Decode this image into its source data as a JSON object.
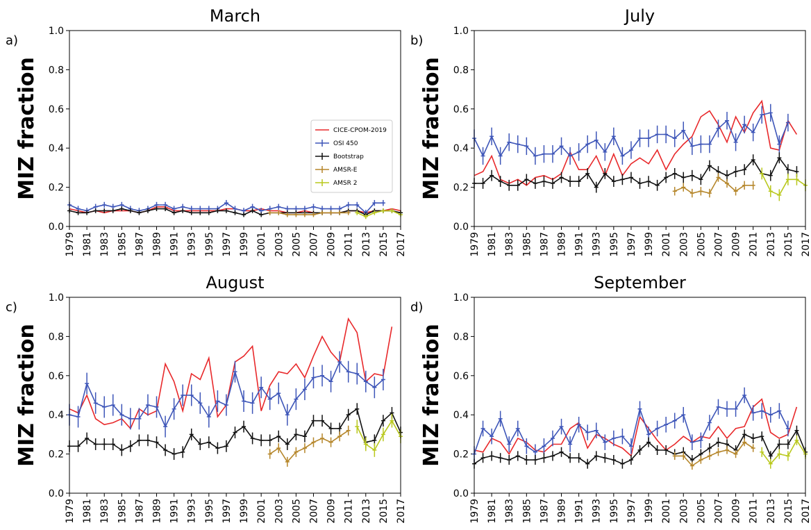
{
  "colors": {
    "CICE-CPOM-2019": "#e8282a",
    "OSI 450": "#3d55b8",
    "Bootstrap": "#111111",
    "AMSR 2": "#b9c81c",
    "AMSR-E": "#b5862a"
  },
  "legend_position": "center-right of panel a",
  "chart_data": [
    {
      "type": "line",
      "panel_label": "a)",
      "title": "March",
      "xlabel": "",
      "ylabel": "MIZ fraction",
      "ylim": [
        0.0,
        1.0
      ],
      "yticks": [
        "0.0",
        "0.2",
        "0.4",
        "0.6",
        "0.8",
        "1.0"
      ],
      "xlim": [
        1979,
        2017
      ],
      "xticks": [
        "1979",
        "1981",
        "1983",
        "1985",
        "1987",
        "1989",
        "1991",
        "1993",
        "1995",
        "1997",
        "1999",
        "2001",
        "2003",
        "2005",
        "2007",
        "2009",
        "2011",
        "2013",
        "2015",
        "2017"
      ],
      "show_legend": true,
      "series": [
        {
          "name": "CICE-CPOM-2019",
          "x_start": 1979,
          "errorbars": false,
          "values": [
            0.09,
            0.08,
            0.07,
            0.08,
            0.07,
            0.08,
            0.08,
            0.08,
            0.07,
            0.08,
            0.1,
            0.1,
            0.08,
            0.08,
            0.08,
            0.08,
            0.08,
            0.08,
            0.09,
            0.09,
            0.08,
            0.08,
            0.09,
            0.08,
            0.08,
            0.07,
            0.07,
            0.08,
            0.07,
            0.07,
            0.07,
            0.07,
            0.08,
            0.08,
            0.07,
            0.08,
            0.08,
            0.09,
            0.08
          ]
        },
        {
          "name": "OSI 450",
          "x_start": 1979,
          "errorbars": true,
          "err": 0.015,
          "values": [
            0.11,
            0.09,
            0.08,
            0.1,
            0.11,
            0.1,
            0.11,
            0.09,
            0.08,
            0.09,
            0.11,
            0.11,
            0.09,
            0.1,
            0.09,
            0.09,
            0.09,
            0.09,
            0.12,
            0.09,
            0.08,
            0.1,
            0.08,
            0.09,
            0.1,
            0.09,
            0.09,
            0.09,
            0.1,
            0.09,
            0.09,
            0.09,
            0.11,
            0.11,
            0.07,
            0.12,
            0.12
          ]
        },
        {
          "name": "Bootstrap",
          "x_start": 1979,
          "errorbars": true,
          "err": 0.012,
          "values": [
            0.08,
            0.07,
            0.07,
            0.08,
            0.08,
            0.08,
            0.09,
            0.08,
            0.07,
            0.08,
            0.09,
            0.09,
            0.07,
            0.08,
            0.07,
            0.07,
            0.07,
            0.08,
            0.08,
            0.07,
            0.06,
            0.08,
            0.06,
            0.07,
            0.07,
            0.07,
            0.07,
            0.07,
            0.07,
            0.07,
            0.07,
            0.07,
            0.08,
            0.08,
            0.06,
            0.08,
            0.08,
            0.08,
            0.07
          ]
        },
        {
          "name": "AMSR-E",
          "x_start": 2002,
          "errorbars": true,
          "err": 0.012,
          "values": [
            0.07,
            0.07,
            0.06,
            0.06,
            0.06,
            0.06,
            0.07,
            0.07,
            0.07,
            0.07
          ]
        },
        {
          "name": "AMSR 2",
          "x_start": 2012,
          "errorbars": true,
          "err": 0.012,
          "values": [
            0.07,
            0.05,
            0.07,
            0.08,
            0.08,
            0.06
          ]
        }
      ]
    },
    {
      "type": "line",
      "panel_label": "b)",
      "title": "July",
      "xlabel": "",
      "ylabel": "MIZ fraction",
      "ylim": [
        0.0,
        1.0
      ],
      "yticks": [
        "0.0",
        "0.2",
        "0.4",
        "0.6",
        "0.8",
        "1.0"
      ],
      "xlim": [
        1979,
        2017
      ],
      "xticks": [
        "1979",
        "1981",
        "1983",
        "1985",
        "1987",
        "1989",
        "1991",
        "1993",
        "1995",
        "1997",
        "1999",
        "2001",
        "2003",
        "2005",
        "2007",
        "2009",
        "2011",
        "2013",
        "2015",
        "2017"
      ],
      "show_legend": false,
      "series": [
        {
          "name": "CICE-CPOM-2019",
          "x_start": 1979,
          "errorbars": false,
          "values": [
            0.26,
            0.28,
            0.36,
            0.24,
            0.22,
            0.24,
            0.21,
            0.25,
            0.26,
            0.24,
            0.27,
            0.38,
            0.29,
            0.29,
            0.36,
            0.26,
            0.37,
            0.26,
            0.32,
            0.35,
            0.32,
            0.39,
            0.29,
            0.37,
            0.42,
            0.46,
            0.56,
            0.59,
            0.52,
            0.43,
            0.56,
            0.48,
            0.58,
            0.64,
            0.4,
            0.39,
            0.54,
            0.47
          ]
        },
        {
          "name": "OSI 450",
          "x_start": 1979,
          "errorbars": true,
          "err": 0.045,
          "values": [
            0.45,
            0.36,
            0.46,
            0.36,
            0.43,
            0.42,
            0.41,
            0.36,
            0.37,
            0.37,
            0.41,
            0.36,
            0.38,
            0.42,
            0.44,
            0.38,
            0.46,
            0.36,
            0.39,
            0.45,
            0.45,
            0.47,
            0.47,
            0.45,
            0.49,
            0.41,
            0.42,
            0.42,
            0.5,
            0.54,
            0.43,
            0.52,
            0.48,
            0.57,
            0.58,
            0.42,
            0.53
          ]
        },
        {
          "name": "Bootstrap",
          "x_start": 1979,
          "errorbars": true,
          "err": 0.028,
          "values": [
            0.22,
            0.22,
            0.26,
            0.23,
            0.21,
            0.21,
            0.24,
            0.22,
            0.23,
            0.22,
            0.25,
            0.23,
            0.23,
            0.27,
            0.2,
            0.27,
            0.23,
            0.24,
            0.25,
            0.22,
            0.23,
            0.21,
            0.25,
            0.27,
            0.25,
            0.26,
            0.24,
            0.31,
            0.28,
            0.26,
            0.28,
            0.29,
            0.34,
            0.27,
            0.26,
            0.35,
            0.29,
            0.28
          ]
        },
        {
          "name": "AMSR-E",
          "x_start": 2002,
          "errorbars": true,
          "err": 0.022,
          "values": [
            0.18,
            0.2,
            0.17,
            0.18,
            0.17,
            0.25,
            0.22,
            0.18,
            0.21,
            0.21
          ]
        },
        {
          "name": "AMSR 2",
          "x_start": 2012,
          "errorbars": true,
          "err": 0.03,
          "values": [
            0.27,
            0.18,
            0.16,
            0.24,
            0.24,
            0.21
          ]
        }
      ]
    },
    {
      "type": "line",
      "panel_label": "c)",
      "title": "August",
      "xlabel": "",
      "ylabel": "MIZ fraction",
      "ylim": [
        0.0,
        1.0
      ],
      "yticks": [
        "0.0",
        "0.2",
        "0.4",
        "0.6",
        "0.8",
        "1.0"
      ],
      "xlim": [
        1979,
        2017
      ],
      "xticks": [
        "1979",
        "1981",
        "1983",
        "1985",
        "1987",
        "1989",
        "1991",
        "1993",
        "1995",
        "1997",
        "1999",
        "2001",
        "2003",
        "2005",
        "2007",
        "2009",
        "2011",
        "2013",
        "2015",
        "2017"
      ],
      "show_legend": false,
      "series": [
        {
          "name": "CICE-CPOM-2019",
          "x_start": 1979,
          "errorbars": false,
          "values": [
            0.43,
            0.41,
            0.5,
            0.38,
            0.35,
            0.36,
            0.38,
            0.33,
            0.43,
            0.4,
            0.42,
            0.66,
            0.57,
            0.42,
            0.61,
            0.58,
            0.69,
            0.39,
            0.45,
            0.67,
            0.7,
            0.75,
            0.42,
            0.55,
            0.62,
            0.61,
            0.66,
            0.59,
            0.7,
            0.8,
            0.72,
            0.67,
            0.89,
            0.82,
            0.57,
            0.61,
            0.6,
            0.85
          ]
        },
        {
          "name": "OSI 450",
          "x_start": 1979,
          "errorbars": true,
          "err": 0.055,
          "values": [
            0.4,
            0.39,
            0.56,
            0.46,
            0.44,
            0.45,
            0.4,
            0.38,
            0.38,
            0.45,
            0.44,
            0.34,
            0.43,
            0.5,
            0.5,
            0.46,
            0.39,
            0.47,
            0.45,
            0.62,
            0.47,
            0.46,
            0.54,
            0.48,
            0.51,
            0.4,
            0.48,
            0.53,
            0.59,
            0.6,
            0.57,
            0.67,
            0.62,
            0.61,
            0.57,
            0.54,
            0.58
          ]
        },
        {
          "name": "Bootstrap",
          "x_start": 1979,
          "errorbars": true,
          "err": 0.03,
          "values": [
            0.24,
            0.24,
            0.28,
            0.25,
            0.25,
            0.25,
            0.22,
            0.24,
            0.27,
            0.27,
            0.26,
            0.22,
            0.2,
            0.21,
            0.3,
            0.25,
            0.26,
            0.23,
            0.24,
            0.31,
            0.34,
            0.28,
            0.27,
            0.27,
            0.29,
            0.25,
            0.3,
            0.29,
            0.37,
            0.37,
            0.33,
            0.33,
            0.4,
            0.43,
            0.26,
            0.27,
            0.37,
            0.41,
            0.31
          ]
        },
        {
          "name": "AMSR-E",
          "x_start": 2002,
          "errorbars": true,
          "err": 0.025,
          "values": [
            0.2,
            0.23,
            0.16,
            0.21,
            0.23,
            0.26,
            0.28,
            0.26,
            0.29,
            0.32
          ]
        },
        {
          "name": "AMSR 2",
          "x_start": 2012,
          "errorbars": true,
          "err": 0.035,
          "values": [
            0.34,
            0.25,
            0.22,
            0.3,
            0.37,
            0.29
          ]
        }
      ]
    },
    {
      "type": "line",
      "panel_label": "d)",
      "title": "September",
      "xlabel": "",
      "ylabel": "MIZ fraction",
      "ylim": [
        0.0,
        1.0
      ],
      "yticks": [
        "0.0",
        "0.2",
        "0.4",
        "0.6",
        "0.8",
        "1.0"
      ],
      "xlim": [
        1979,
        2017
      ],
      "xticks": [
        "1979",
        "1981",
        "1983",
        "1985",
        "1987",
        "1989",
        "1991",
        "1993",
        "1995",
        "1997",
        "1999",
        "2001",
        "2003",
        "2005",
        "2007",
        "2009",
        "2011",
        "2013",
        "2015",
        "2017"
      ],
      "show_legend": false,
      "series": [
        {
          "name": "CICE-CPOM-2019",
          "x_start": 1979,
          "errorbars": false,
          "values": [
            0.22,
            0.21,
            0.28,
            0.26,
            0.2,
            0.28,
            0.26,
            0.22,
            0.21,
            0.25,
            0.25,
            0.33,
            0.36,
            0.23,
            0.3,
            0.28,
            0.25,
            0.23,
            0.19,
            0.39,
            0.33,
            0.27,
            0.22,
            0.25,
            0.29,
            0.26,
            0.29,
            0.28,
            0.34,
            0.28,
            0.33,
            0.34,
            0.44,
            0.48,
            0.31,
            0.28,
            0.3,
            0.44
          ]
        },
        {
          "name": "OSI 450",
          "x_start": 1979,
          "errorbars": true,
          "err": 0.04,
          "values": [
            0.2,
            0.33,
            0.29,
            0.38,
            0.25,
            0.33,
            0.24,
            0.21,
            0.24,
            0.28,
            0.34,
            0.25,
            0.35,
            0.31,
            0.32,
            0.26,
            0.28,
            0.29,
            0.24,
            0.43,
            0.3,
            0.33,
            0.35,
            0.37,
            0.4,
            0.26,
            0.27,
            0.36,
            0.44,
            0.43,
            0.43,
            0.5,
            0.41,
            0.42,
            0.4,
            0.42,
            0.33
          ]
        },
        {
          "name": "Bootstrap",
          "x_start": 1979,
          "errorbars": true,
          "err": 0.025,
          "values": [
            0.15,
            0.18,
            0.19,
            0.18,
            0.17,
            0.19,
            0.17,
            0.17,
            0.18,
            0.19,
            0.21,
            0.18,
            0.18,
            0.15,
            0.19,
            0.18,
            0.17,
            0.15,
            0.17,
            0.22,
            0.26,
            0.22,
            0.22,
            0.2,
            0.21,
            0.17,
            0.2,
            0.23,
            0.26,
            0.25,
            0.22,
            0.3,
            0.28,
            0.29,
            0.19,
            0.25,
            0.25,
            0.32,
            0.21
          ]
        },
        {
          "name": "AMSR-E",
          "x_start": 2002,
          "errorbars": true,
          "err": 0.02,
          "values": [
            0.19,
            0.19,
            0.14,
            0.17,
            0.19,
            0.21,
            0.22,
            0.2,
            0.26,
            0.23
          ]
        },
        {
          "name": "AMSR 2",
          "x_start": 2012,
          "errorbars": true,
          "err": 0.025,
          "values": [
            0.21,
            0.15,
            0.2,
            0.19,
            0.27,
            0.2
          ]
        }
      ]
    }
  ]
}
